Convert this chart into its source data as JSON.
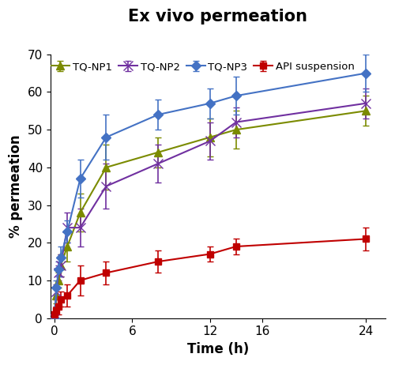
{
  "title": "Ex vivo permeation",
  "xlabel": "Time (h)",
  "ylabel": "% permeation",
  "xlim": [
    -0.3,
    25.5
  ],
  "ylim": [
    0,
    70
  ],
  "yticks": [
    0,
    10,
    20,
    30,
    40,
    50,
    60,
    70
  ],
  "xticks": [
    0,
    6,
    12,
    16,
    24
  ],
  "series": [
    {
      "label": "TQ-NP1",
      "color": "#7B8B00",
      "marker": "^",
      "x": [
        0,
        0.17,
        0.33,
        0.5,
        1,
        2,
        4,
        8,
        12,
        14,
        24
      ],
      "y": [
        0,
        6,
        10,
        14,
        19,
        28,
        40,
        44,
        48,
        50,
        55
      ],
      "yerr": [
        0,
        2,
        2,
        3,
        4,
        5,
        6,
        4,
        5,
        5,
        4
      ]
    },
    {
      "label": "TQ-NP2",
      "color": "#7030A0",
      "marker": "x",
      "x": [
        0,
        0.17,
        0.33,
        0.5,
        1,
        2,
        4,
        8,
        12,
        14,
        24
      ],
      "y": [
        0,
        7,
        12,
        14,
        24,
        24,
        35,
        41,
        47,
        52,
        57
      ],
      "yerr": [
        0,
        2,
        2,
        3,
        4,
        5,
        6,
        5,
        5,
        4,
        4
      ]
    },
    {
      "label": "TQ-NP3",
      "color": "#4472C4",
      "marker": "D",
      "x": [
        0,
        0.17,
        0.33,
        0.5,
        1,
        2,
        4,
        8,
        12,
        14,
        24
      ],
      "y": [
        0,
        8,
        13,
        16,
        23,
        37,
        48,
        54,
        57,
        59,
        65
      ],
      "yerr": [
        0,
        2,
        2,
        3,
        3,
        5,
        6,
        4,
        4,
        5,
        5
      ]
    },
    {
      "label": "API suspension",
      "color": "#C00000",
      "marker": "s",
      "x": [
        0,
        0.17,
        0.33,
        0.5,
        1,
        2,
        4,
        8,
        12,
        14,
        24
      ],
      "y": [
        1,
        2,
        3,
        5,
        6,
        10,
        12,
        15,
        17,
        19,
        21
      ],
      "yerr": [
        0,
        1,
        2,
        2,
        3,
        4,
        3,
        3,
        2,
        2,
        3
      ]
    }
  ],
  "title_fontsize": 15,
  "label_fontsize": 12,
  "tick_fontsize": 11,
  "legend_fontsize": 9.5,
  "background_color": "#ffffff",
  "figsize": [
    5.0,
    4.62
  ],
  "dpi": 100
}
